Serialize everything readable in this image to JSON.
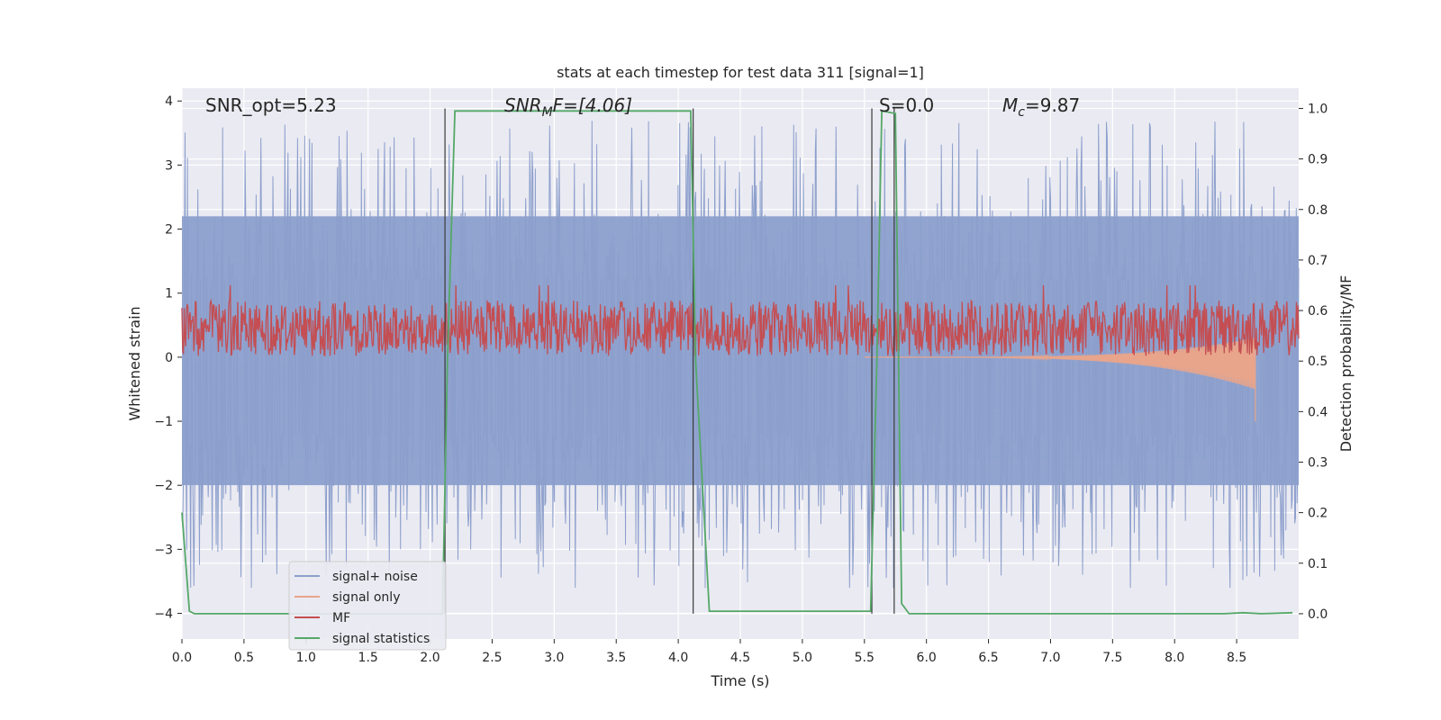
{
  "chart_data": {
    "type": "line",
    "title": "stats at each timestep for test data 311 [signal=1]",
    "xlabel": "Time (s)",
    "ylabel": "Whitened strain",
    "ylabel_right": "Detection probability/MF",
    "xlim": [
      0,
      9.0
    ],
    "ylim": [
      -4.4,
      4.2
    ],
    "ylim_right": [
      -0.05,
      1.04
    ],
    "grid": true,
    "legend_position": "lower-left",
    "x_ticks": [
      "0.0",
      "0.5",
      "1.0",
      "1.5",
      "2.0",
      "2.5",
      "3.0",
      "3.5",
      "4.0",
      "4.5",
      "5.0",
      "5.5",
      "6.0",
      "6.5",
      "7.0",
      "7.5",
      "8.0",
      "8.5"
    ],
    "y_ticks": [
      "4",
      "3",
      "2",
      "1",
      "0",
      "−1",
      "−2",
      "−3",
      "−4"
    ],
    "y_ticks_right": [
      "1.0",
      "0.9",
      "0.8",
      "0.7",
      "0.6",
      "0.5",
      "0.4",
      "0.3",
      "0.2",
      "0.1",
      "0.0"
    ],
    "annotations": {
      "snr_opt": "SNR_opt=5.23",
      "snr_mf_base": "SNR",
      "snr_mf_sub": "M",
      "snr_mf_rest": "F=[4.06]",
      "s_value": "S=0.0",
      "mc_base": "M",
      "mc_sub": "c",
      "mc_rest": "=9.87"
    },
    "vertical_lines_x": [
      2.12,
      4.12,
      5.56,
      5.74
    ],
    "series": [
      {
        "name": "signal+ noise",
        "color": "#8c9fcc",
        "description_axis": "left",
        "band": {
          "typical_min": -2.0,
          "typical_max": 2.2,
          "peak_min": -3.6,
          "peak_max": 3.8
        }
      },
      {
        "name": "signal only",
        "color": "#e8a58b",
        "description_axis": "left",
        "chirp": {
          "start": 5.5,
          "end": 8.65,
          "peak_amplitude": 1.0
        }
      },
      {
        "name": "MF",
        "color": "#c44e52",
        "description_axis": "right",
        "band": {
          "min": 0.51,
          "max": 0.62,
          "peak_max": 0.65
        }
      },
      {
        "name": "signal statistics",
        "color": "#55a868",
        "description_axis": "right",
        "x": [
          0.0,
          0.06,
          0.1,
          2.1,
          2.14,
          2.2,
          4.1,
          4.14,
          4.25,
          5.55,
          5.6,
          5.64,
          5.75,
          5.8,
          5.86,
          8.4,
          8.55,
          8.7,
          8.95
        ],
        "y": [
          0.2,
          0.005,
          0.0,
          0.0,
          0.5,
          0.995,
          0.995,
          0.5,
          0.005,
          0.005,
          0.5,
          0.995,
          0.99,
          0.02,
          0.0,
          0.0,
          0.002,
          0.0,
          0.002
        ]
      }
    ]
  }
}
